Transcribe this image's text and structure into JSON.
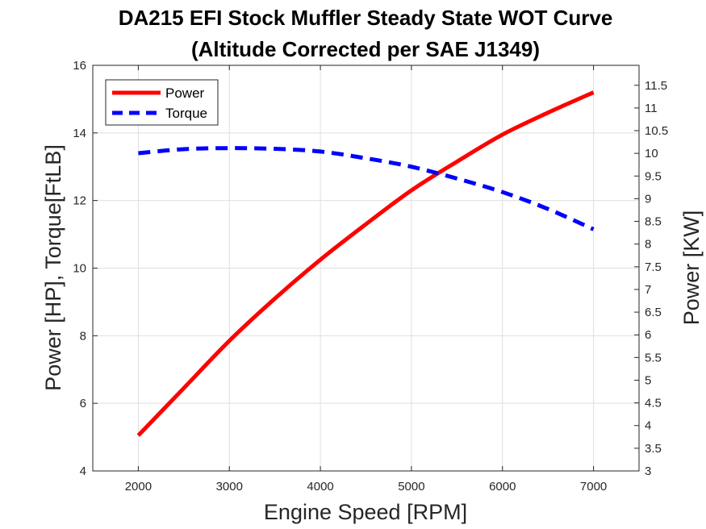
{
  "chart_data": {
    "type": "line",
    "title": "DA215 EFI Stock Muffler Steady State WOT Curve",
    "subtitle": "(Altitude Corrected per SAE J1349)",
    "xlabel": "Engine Speed [RPM]",
    "ylabel": "Power [HP], Torque[FtLB]",
    "ylabel_right": "Power [KW]",
    "xlim": [
      1500,
      7500
    ],
    "ylim": [
      4,
      16
    ],
    "ylim_right": [
      3,
      11.94
    ],
    "x_ticks": [
      "2000",
      "3000",
      "4000",
      "5000",
      "6000",
      "7000"
    ],
    "y_ticks": [
      "4",
      "6",
      "8",
      "10",
      "12",
      "14",
      "16"
    ],
    "y_ticks_right": [
      "3",
      "3.5",
      "4",
      "4.5",
      "5",
      "5.5",
      "6",
      "6.5",
      "7",
      "7.5",
      "8",
      "8.5",
      "9",
      "9.5",
      "10",
      "10.5",
      "11",
      "11.5"
    ],
    "grid": true,
    "legend_position": "top-left",
    "x": [
      2000,
      2500,
      3000,
      3500,
      4000,
      4500,
      5000,
      5500,
      6000,
      6500,
      7000
    ],
    "series": [
      {
        "name": "Power",
        "color": "#ff0000",
        "style": "solid",
        "values": [
          5.05,
          6.45,
          7.85,
          9.1,
          10.25,
          11.3,
          12.3,
          13.15,
          13.95,
          14.6,
          15.2
        ]
      },
      {
        "name": "Torque",
        "color": "#0000ff",
        "style": "dashed",
        "values": [
          13.4,
          13.52,
          13.55,
          13.53,
          13.45,
          13.25,
          13.0,
          12.65,
          12.25,
          11.75,
          11.15
        ]
      }
    ]
  }
}
